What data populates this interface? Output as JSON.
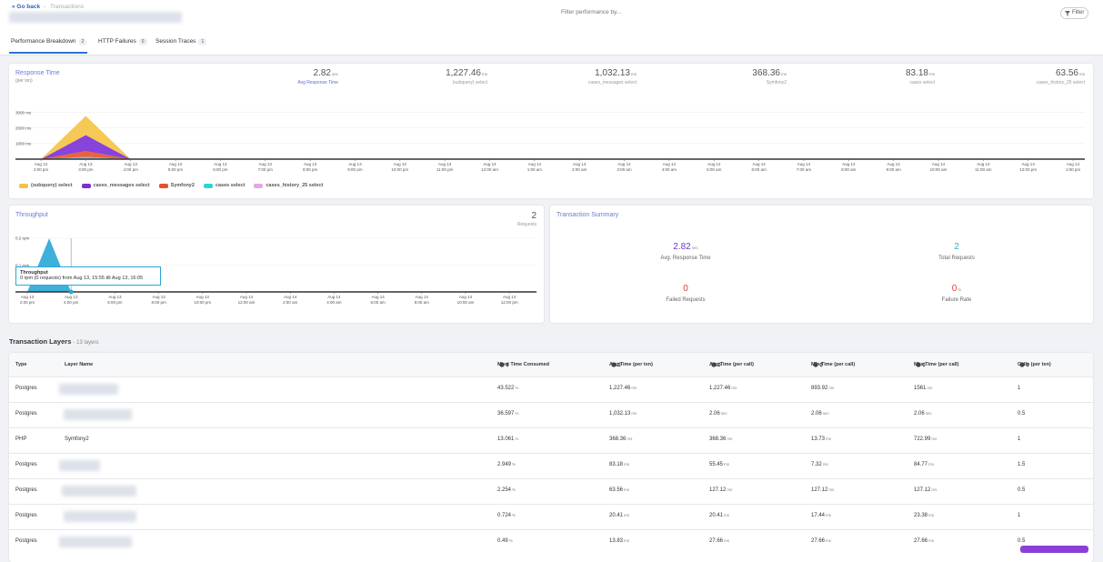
{
  "header": {
    "back": "« Go back",
    "separator": "-",
    "crumb": "Transactions",
    "search": "Filter performance by...",
    "filter": "Filter"
  },
  "tabs": [
    {
      "label": "Performance Breakdown",
      "count": 2
    },
    {
      "label": "HTTP Failures",
      "count": 0
    },
    {
      "label": "Session Traces",
      "count": 1
    }
  ],
  "response_stats": [
    {
      "value": "2.82",
      "unit": "sec",
      "label": "Avg Response Time"
    },
    {
      "value": "1,227.46",
      "unit": "ms",
      "label": "(subquery) select"
    },
    {
      "value": "1,032.13",
      "unit": "ms",
      "label": "cases_messages select"
    },
    {
      "value": "368.36",
      "unit": "ms",
      "label": "Symfony2"
    },
    {
      "value": "83.18",
      "unit": "ms",
      "label": "cases select"
    },
    {
      "value": "63.56",
      "unit": "ms",
      "label": "cases_history_25 select"
    }
  ],
  "chart_data": [
    {
      "type": "area",
      "stacked": true,
      "title": "Response Time",
      "subtitle": "(per txn)",
      "categories": [
        "Aug 13\n2:00 pm",
        "Aug 13\n3:00 pm",
        "Aug 13\n4:00 pm",
        "Aug 13\n5:00 pm",
        "Aug 13\n6:00 pm",
        "Aug 13\n7:00 pm",
        "Aug 13\n8:00 pm",
        "Aug 13\n9:00 pm",
        "Aug 13\n10:00 pm",
        "Aug 13\n11:00 pm",
        "Aug 14\n12:00 am",
        "Aug 14\n1:00 am",
        "Aug 14\n2:00 am",
        "Aug 14\n3:00 am",
        "Aug 14\n4:00 am",
        "Aug 14\n5:00 am",
        "Aug 14\n6:00 am",
        "Aug 14\n7:00 am",
        "Aug 14\n8:00 am",
        "Aug 14\n9:00 am",
        "Aug 14\n10:00 am",
        "Aug 14\n11:00 am",
        "Aug 14\n12:00 pm",
        "Aug 14\n1:00 pm"
      ],
      "series": [
        {
          "name": "(subquery) select",
          "color": "#f5c242",
          "values": [
            0,
            1227,
            0,
            0,
            0,
            0,
            0,
            0,
            0,
            0,
            0,
            0,
            0,
            0,
            0,
            0,
            0,
            0,
            0,
            0,
            0,
            0,
            0,
            0
          ]
        },
        {
          "name": "cases_messages select",
          "color": "#7b2fd6",
          "values": [
            0,
            1032,
            0,
            0,
            0,
            0,
            0,
            0,
            0,
            0,
            0,
            0,
            0,
            0,
            0,
            0,
            0,
            0,
            0,
            0,
            0,
            0,
            0,
            0
          ]
        },
        {
          "name": "Symfony2",
          "color": "#e8502a",
          "values": [
            0,
            368,
            0,
            0,
            0,
            0,
            0,
            0,
            0,
            0,
            0,
            0,
            0,
            0,
            0,
            0,
            0,
            0,
            0,
            0,
            0,
            0,
            0,
            0
          ]
        },
        {
          "name": "cases select",
          "color": "#2dd4d4",
          "values": [
            0,
            83,
            0,
            0,
            0,
            0,
            0,
            0,
            0,
            0,
            0,
            0,
            0,
            0,
            0,
            0,
            0,
            0,
            0,
            0,
            0,
            0,
            0,
            0
          ]
        },
        {
          "name": "cases_history_25 select",
          "color": "#e6a6e6",
          "values": [
            0,
            64,
            0,
            0,
            0,
            0,
            0,
            0,
            0,
            0,
            0,
            0,
            0,
            0,
            0,
            0,
            0,
            0,
            0,
            0,
            0,
            0,
            0,
            0
          ]
        }
      ],
      "ylim": [
        0,
        3500
      ],
      "yticks": [
        {
          "value": 1000,
          "label": "1000 ms"
        },
        {
          "value": 2000,
          "label": "2000 ms"
        },
        {
          "value": 3000,
          "label": "3000 ms"
        }
      ],
      "grid": true
    },
    {
      "type": "area",
      "title": "Throughput",
      "total": 2,
      "total_label": "Requests",
      "categories": [
        "Aug 13\n2:00 pm",
        null,
        "Aug 13\n4:00 pm",
        null,
        "Aug 13\n6:00 pm",
        null,
        "Aug 13\n8:00 pm",
        null,
        "Aug 13\n10:00 pm",
        null,
        "Aug 14\n12:00 am",
        null,
        "Aug 14\n2:00 am",
        null,
        "Aug 14\n4:00 am",
        null,
        "Aug 14\n6:00 am",
        null,
        "Aug 14\n8:00 am",
        null,
        "Aug 14\n10:00 am",
        null,
        "Aug 14\n12:00 pm"
      ],
      "values": [
        0,
        0.2,
        0,
        0,
        0,
        0,
        0,
        0,
        0,
        0,
        0,
        0,
        0,
        0,
        0,
        0,
        0,
        0,
        0,
        0,
        0,
        0,
        0
      ],
      "color": "#2aa6d8",
      "ylim": [
        0,
        0.2
      ],
      "yticks": [
        {
          "value": 0.1,
          "label": "0.1 rpm"
        },
        {
          "value": 0.2,
          "label": "0.2 rpm"
        }
      ],
      "grid": true,
      "tooltip": {
        "title": "Throughput",
        "text": "0 rpm (0 requests) from Aug 13, 15:55 till Aug 13, 16:05"
      }
    }
  ],
  "summary": {
    "title": "Transaction Summary",
    "metrics": [
      {
        "value": 2.82,
        "unit": "sec",
        "label": "Avg. Response Time"
      },
      {
        "value": 2,
        "label": "Total Requests"
      },
      {
        "value": 0,
        "label": "Failed Requests"
      },
      {
        "value": 0,
        "unit": "%",
        "label": "Failure Rate"
      }
    ]
  },
  "table": {
    "title": "Transaction Layers",
    "subtitle": "- 13 layers",
    "columns": [
      "Type",
      "Layer Name",
      "Most Time Consumed",
      "Avg Time (per txn)",
      "Avg Time (per call)",
      "Min Time (per call)",
      "Max Time (per call)",
      "Calls (per txn)"
    ],
    "rows": [
      {
        "type": "Postgres",
        "cells": [
          [
            "43.522",
            "%"
          ],
          [
            "1,227.46",
            "ms"
          ],
          [
            "1,227.46",
            "ms"
          ],
          [
            "893.92",
            "ms"
          ],
          [
            "1561",
            "ms"
          ]
        ],
        "calls": 1
      },
      {
        "type": "Postgres",
        "cells": [
          [
            "36.597",
            "%"
          ],
          [
            "1,032.13",
            "ms"
          ],
          [
            "2.06",
            "sec"
          ],
          [
            "2.06",
            "sec"
          ],
          [
            "2.06",
            "sec"
          ]
        ],
        "calls": 0.5
      },
      {
        "type": "PHP",
        "layer": "Symfony2",
        "cells": [
          [
            "13.061",
            "%"
          ],
          [
            "368.36",
            "ms"
          ],
          [
            "368.36",
            "ms"
          ],
          [
            "13.73",
            "ms"
          ],
          [
            "722.99",
            "ms"
          ]
        ],
        "calls": 1
      },
      {
        "type": "Postgres",
        "cells": [
          [
            "2.949",
            "%"
          ],
          [
            "83.18",
            "ms"
          ],
          [
            "55.45",
            "ms"
          ],
          [
            "7.32",
            "ms"
          ],
          [
            "84.77",
            "ms"
          ]
        ],
        "calls": 1.5
      },
      {
        "type": "Postgres",
        "cells": [
          [
            "2.254",
            "%"
          ],
          [
            "63.56",
            "ms"
          ],
          [
            "127.12",
            "ms"
          ],
          [
            "127.12",
            "ms"
          ],
          [
            "127.12",
            "ms"
          ]
        ],
        "calls": 0.5
      },
      {
        "type": "Postgres",
        "cells": [
          [
            "0.724",
            "%"
          ],
          [
            "20.41",
            "ms"
          ],
          [
            "20.41",
            "ms"
          ],
          [
            "17.44",
            "ms"
          ],
          [
            "23.38",
            "ms"
          ]
        ],
        "calls": 1
      },
      {
        "type": "Postgres",
        "cells": [
          [
            "0.49",
            "%"
          ],
          [
            "13.83",
            "ms"
          ],
          [
            "27.66",
            "ms"
          ],
          [
            "27.66",
            "ms"
          ],
          [
            "27.66",
            "ms"
          ]
        ],
        "calls": 0.5
      }
    ]
  }
}
